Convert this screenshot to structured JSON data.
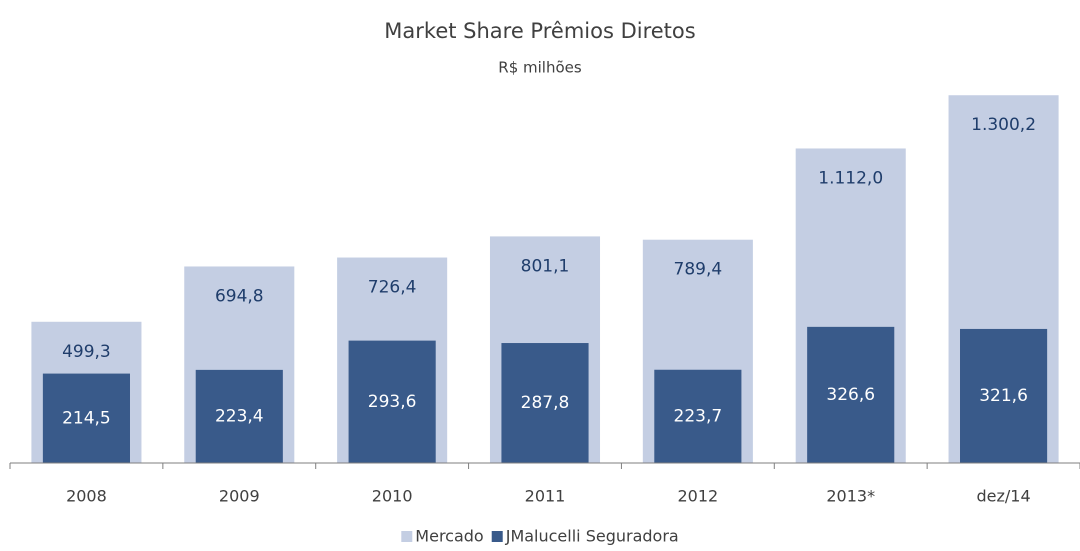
{
  "chart_data": {
    "type": "overlap-bar",
    "title": "Market Share Prêmios Diretos",
    "subtitle": "R$ milhões",
    "categories": [
      "2008",
      "2009",
      "2010",
      "2011",
      "2012",
      "2013*",
      "dez/14"
    ],
    "series": [
      {
        "name": "Mercado",
        "color": "#c4cee3",
        "values": [
          499.3,
          694.8,
          726.4,
          801.1,
          789.4,
          1112.0,
          1300.2
        ],
        "value_labels": [
          "499,3",
          "694,8",
          "726,4",
          "801,1",
          "789,4",
          "1.112,0",
          "1.300,2"
        ]
      },
      {
        "name": "JMalucelli Seguradora",
        "color": "#395a8a",
        "axis": "y2",
        "values": [
          214.5,
          223.4,
          293.6,
          287.8,
          223.7,
          326.6,
          321.6
        ],
        "value_labels": [
          "214,5",
          "223,4",
          "293,6",
          "287,8",
          "223,7",
          "326,6",
          "321,6"
        ]
      }
    ],
    "ylim": [
      0,
      1400
    ],
    "y2lim": [
      0,
      950
    ]
  }
}
